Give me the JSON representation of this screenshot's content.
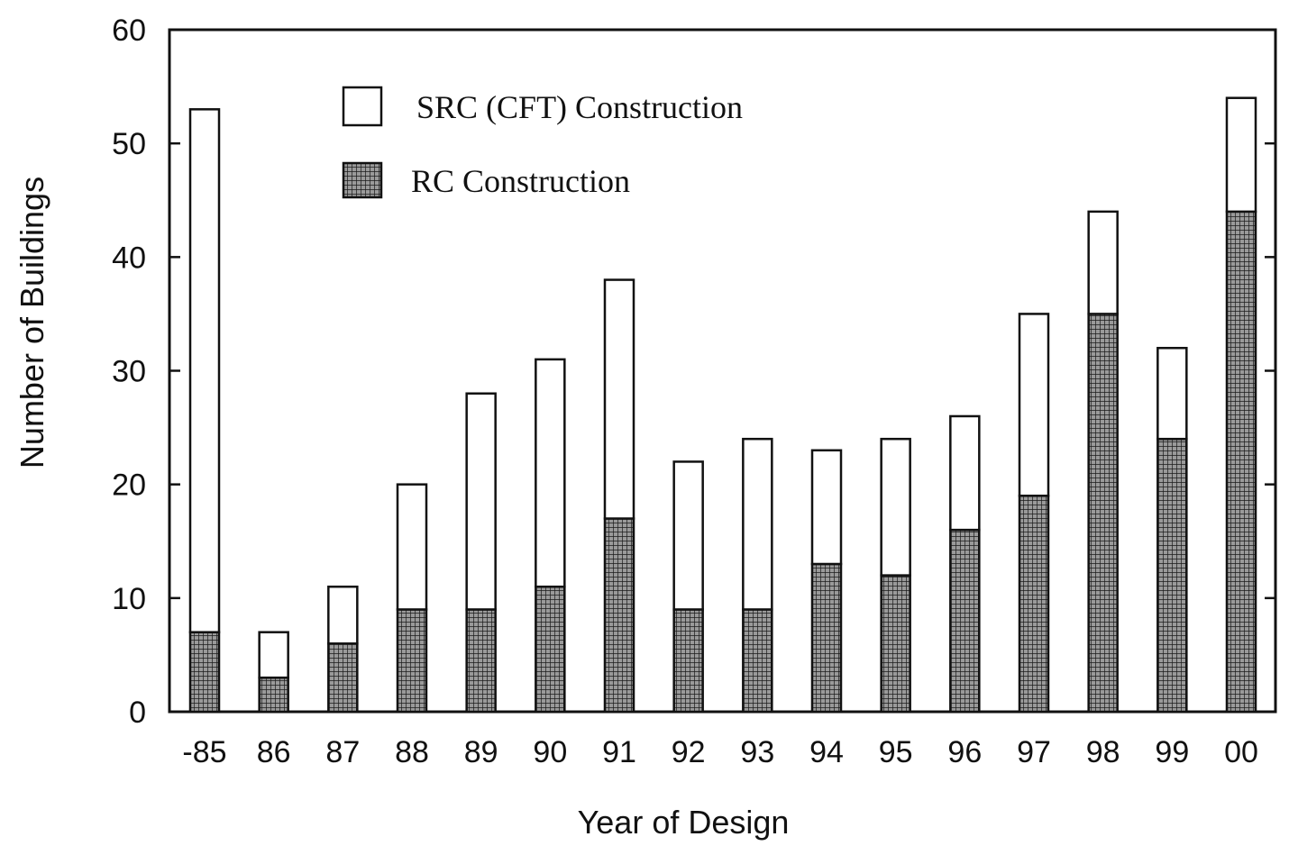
{
  "chart_data": {
    "type": "bar",
    "stacked": true,
    "xlabel": "Year of Design",
    "ylabel": "Number of Buildings",
    "ylim": [
      0,
      60
    ],
    "yticks": [
      0,
      10,
      20,
      30,
      40,
      50,
      60
    ],
    "categories": [
      "-85",
      "86",
      "87",
      "88",
      "89",
      "90",
      "91",
      "92",
      "93",
      "94",
      "95",
      "96",
      "97",
      "98",
      "99",
      "00"
    ],
    "series": [
      {
        "name": "RC Construction",
        "fill": "hatched",
        "values": [
          7,
          3,
          6,
          9,
          9,
          11,
          17,
          9,
          9,
          13,
          12,
          16,
          19,
          35,
          24,
          44
        ]
      },
      {
        "name": "SRC (CFT) Construction",
        "fill": "white",
        "values": [
          46,
          4,
          5,
          11,
          19,
          20,
          21,
          13,
          15,
          10,
          12,
          10,
          16,
          9,
          8,
          10
        ]
      }
    ],
    "totals": [
      53,
      7,
      11,
      20,
      28,
      31,
      38,
      22,
      24,
      23,
      24,
      26,
      35,
      44,
      32,
      54
    ],
    "legend": {
      "position": "top-left",
      "entries": [
        "SRC (CFT) Construction",
        "RC Construction"
      ]
    },
    "grid": false
  }
}
